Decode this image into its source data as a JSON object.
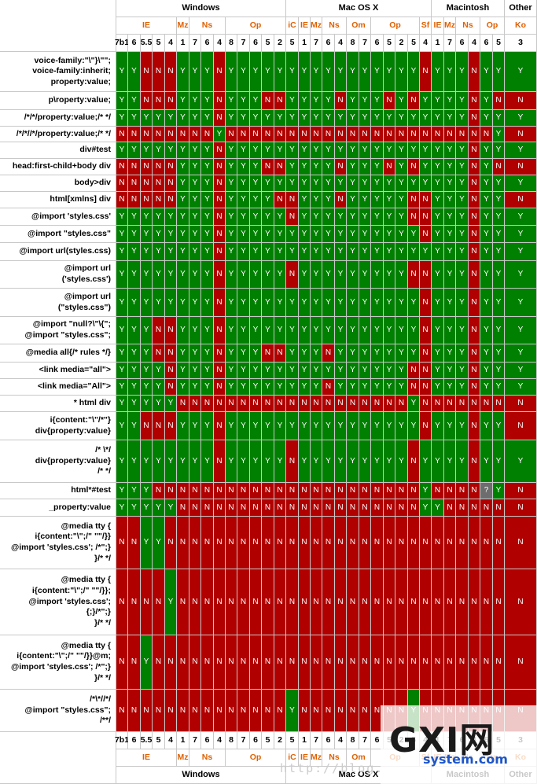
{
  "colors": {
    "Y": "#008000",
    "N": "#b00000",
    "?": "#6d6d6d",
    "browser_text": "#e06000"
  },
  "platforms": [
    "Windows",
    "Mac OS X",
    "Macintosh",
    "Other"
  ],
  "browser_groups": [
    "IE",
    "Mz",
    "Ns",
    "Op",
    "iC",
    "IE",
    "Mz",
    "Ns",
    "Om",
    "Op",
    "Sf",
    "IE",
    "Mz",
    "Ns",
    "Op",
    "Ko"
  ],
  "versions": [
    "7b1",
    "6",
    "5.5",
    "5",
    "4",
    "1",
    "7",
    "6",
    "4",
    "8",
    "7",
    "6",
    "5",
    "2",
    "5",
    "1",
    "7",
    "6",
    "4",
    "8",
    "7",
    "6",
    "5",
    "2",
    "5",
    "4",
    "1",
    "7",
    "6",
    "4",
    "6",
    "5",
    "3"
  ],
  "watermark": {
    "logo": "GXI网",
    "site": "system.com",
    "url": "http://blog."
  },
  "chart_data": {
    "type": "table",
    "title": "",
    "rows": [
      {
        "label": "voice-family:\"\\\"}\\\"\";\nvoice-family:inherit;\nproperty:value;",
        "values": "YYNNNYYYNYYYYYYYYYYYYYYYYNYYYNYYY"
      },
      {
        "label": "p\\roperty:value;",
        "values": "YYNNNYYYNYYYNNYYYYNYYYNYNYYYYNYNN"
      },
      {
        "label": "/*/*/property:value;/* */",
        "values": "YYYYYYYYNYYYYYYYYYYYYYYYYYYYYNYYY"
      },
      {
        "label": "/*/*//*/property:value;/* */",
        "values": "NNNNNNNNYNNNNNNNNNNNNNNNNNNNNNNYN"
      },
      {
        "label": "div#test",
        "values": "YYYYYYYYNYYYYYYYYYYYYYYYYYYYYNYYY"
      },
      {
        "label": "head:first-child+body div",
        "values": "NNNNNYYYNYYYNNYYYYNYYYNYNYYYYNYNN"
      },
      {
        "label": "body>div",
        "values": "NNNNNYYYNYYYYYYYYYYYYYYYYYYYYNYYY"
      },
      {
        "label": "html[xmlns] div",
        "values": "NNNNNYYYNYYYYNNYYYNYYYYYNNYYYNYYN"
      },
      {
        "label": "@import 'styles.css'",
        "values": "YYYYYYYYNYYYYYNYYYYYYYYYNNYYYNYYY"
      },
      {
        "label": "@import \"styles.css\"",
        "values": "YYYYYYYYNYYYYYYYYYYYYYYYYNYYYNYYY"
      },
      {
        "label": "@import url(styles.css)",
        "values": "YYYYYYYYNYYYYYYYYYYYYYYYYYYYYNYYY"
      },
      {
        "label": "@import url\n('styles.css')",
        "values": "YYYYYYYYNYYYYYNYYYYYYYYYNNYYYNYYY"
      },
      {
        "label": "@import url\n(\"styles.css\")",
        "values": "YYYYYYYYNYYYYYYYYYYYYYYYYNYYYNYYY"
      },
      {
        "label": "@import \"null?\\\"\\{\";\n@import \"styles.css\";",
        "values": "YYYNNYYYNYYYYYYYYYYYYYYYYNYYYNYYY"
      },
      {
        "label": "@media all{/* rules */}",
        "values": "YYYNNYYYNYYYNNYYYNYYYYYYYNYYYNYYY"
      },
      {
        "label": "<link media=\"all\">",
        "values": "YYYYNYYYNYYYYYYYYYYYYYYYNNYYYNYYY"
      },
      {
        "label": "<link media=\"All\">",
        "values": "YYYYNYYYNYYYYYYYYNYYYYYYNNYYYNYYY"
      },
      {
        "label": "* html div",
        "values": "YYYYYNNNNNNNNNNNNNNNNNNNYNNNNNNNN"
      },
      {
        "label": "i{content:\"\\\"/*\"}\ndiv{property:value}",
        "values": "YYNNNYYYNYYYYYYYYYYYYYYYYNYYYNYYN"
      },
      {
        "label": "/* \\*/\ndiv{property:value}\n/* */",
        "values": "YYYYYYYYNYYYYYNYYYYYYYYYNYYYYNYYY"
      },
      {
        "label": "html*#test",
        "values": "YYYNNNNNNNNNNNNNNNNNNNNNNYNNNN?YN"
      },
      {
        "label": "_property:value",
        "values": "YYYYYNNNNNNNNNNNNNNNNNNNNYYNNNNNN"
      },
      {
        "label": "@media tty {\ni{content:\"\\\";/\" \"\"/}}\n@import 'styles.css'; /*\";}\n}/* */",
        "values": "NNYYNNNNNNNNNNNNNNNNNNNNNNNNNNNNN"
      },
      {
        "label": "@media tty {\ni{content:\"\\\";/\" \"\"/}};\n@import 'styles.css';\n{;}/*\";}\n}/* */",
        "values": "NNNNYNNNNNNNNNNNNNNNNNNNNNNNNNNNN"
      },
      {
        "label": "@media tty {\ni{content:\"\\\";/\" \"\"/}}@m;\n@import 'styles.css'; /*\";}\n}/* */",
        "values": "NNYNNNNNNNNNNNNNNNNNNNNNNNNNNNNNN"
      },
      {
        "label": "/*\\*//*/\n@import \"styles.css\";\n/**/",
        "values": "NNNNNNNNNNNNNNYNNNNNNNNNYNNNNNNNN"
      }
    ]
  }
}
